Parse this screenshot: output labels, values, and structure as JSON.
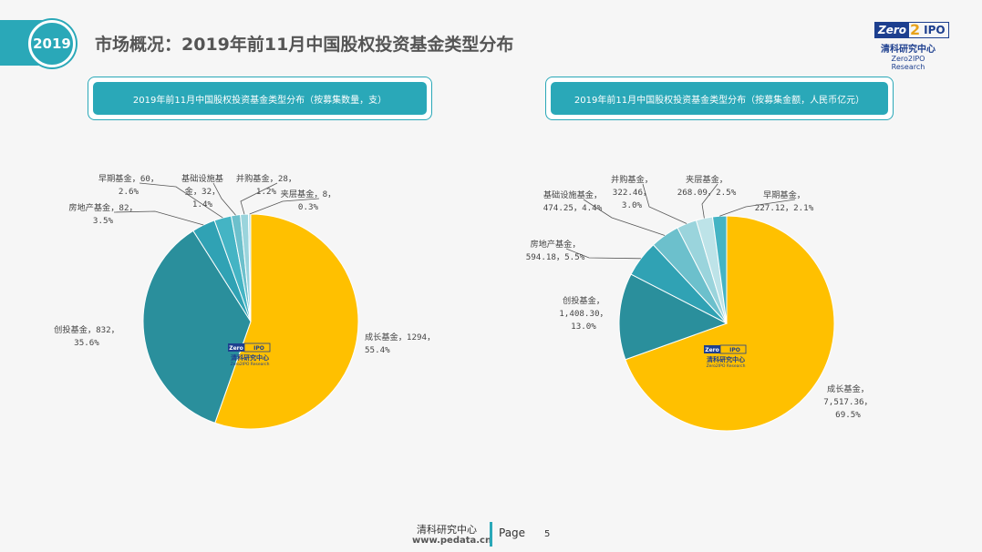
{
  "header": {
    "year": "2019",
    "title": "市场概况：2019年前11月中国股权投资基金类型分布"
  },
  "logo": {
    "zero": "Zero",
    "two": "2",
    "ipo": "IPO",
    "cn": "清科研究中心",
    "en": "Zero2IPO Research"
  },
  "watermark": {
    "zero": "Zero",
    "ipo": "IPO",
    "cn": "清科研究中心",
    "en": "Zero2IPO Research"
  },
  "footer": {
    "org": "清科研究中心",
    "url": "www.pedata.cn",
    "page_label": "Page",
    "page_number": "5"
  },
  "colors": {
    "accent": "#2aa8b8",
    "growth": "#ffc000",
    "venture": "#2a8f9c",
    "real_estate": "#30a2b4",
    "early": "#44b4c4",
    "infrastructure": "#6cc0cc",
    "buyout": "#9ad4dc",
    "mezzanine": "#bde3e8"
  },
  "chart_data": [
    {
      "type": "pie",
      "title": "2019年前11月中国股权投资基金类型分布（按募集数量，支）",
      "series": [
        {
          "name": "成长基金",
          "value": 1294,
          "percent": 55.4,
          "label": [
            "成长基金，1294，",
            "55.4%"
          ]
        },
        {
          "name": "创投基金",
          "value": 832,
          "percent": 35.6,
          "label": [
            "创投基金，832，",
            "35.6%"
          ]
        },
        {
          "name": "房地产基金",
          "value": 82,
          "percent": 3.5,
          "label": [
            "房地产基金，82，",
            "3.5%"
          ]
        },
        {
          "name": "早期基金",
          "value": 60,
          "percent": 2.6,
          "label": [
            "早期基金，60，",
            "2.6%"
          ]
        },
        {
          "name": "基础设施基金",
          "value": 32,
          "percent": 1.4,
          "label": [
            "基础设施基",
            "金，32，",
            "1.4%"
          ]
        },
        {
          "name": "并购基金",
          "value": 28,
          "percent": 1.2,
          "label": [
            "并购基金，28，",
            "1.2%"
          ]
        },
        {
          "name": "夹层基金",
          "value": 8,
          "percent": 0.3,
          "label": [
            "夹层基金，8，",
            "0.3%"
          ]
        }
      ]
    },
    {
      "type": "pie",
      "title": "2019年前11月中国股权投资基金类型分布（按募集金额，人民币亿元）",
      "series": [
        {
          "name": "成长基金",
          "value": 7517.36,
          "percent": 69.5,
          "label": [
            "成长基金，",
            "7,517.36，",
            "69.5%"
          ]
        },
        {
          "name": "创投基金",
          "value": 1408.3,
          "percent": 13.0,
          "label": [
            "创投基金，",
            "1,408.30，",
            "13.0%"
          ]
        },
        {
          "name": "房地产基金",
          "value": 594.18,
          "percent": 5.5,
          "label": [
            "房地产基金，",
            "594.18，5.5%"
          ]
        },
        {
          "name": "基础设施基金",
          "value": 474.25,
          "percent": 4.4,
          "label": [
            "基础设施基金，",
            "474.25，4.4%"
          ]
        },
        {
          "name": "并购基金",
          "value": 322.46,
          "percent": 3.0,
          "label": [
            "并购基金，",
            "322.46，",
            "3.0%"
          ]
        },
        {
          "name": "夹层基金",
          "value": 268.09,
          "percent": 2.5,
          "label": [
            "夹层基金，",
            "268.09，2.5%"
          ]
        },
        {
          "name": "早期基金",
          "value": 227.12,
          "percent": 2.1,
          "label": [
            "早期基金，",
            "227.12，2.1%"
          ]
        }
      ]
    }
  ]
}
